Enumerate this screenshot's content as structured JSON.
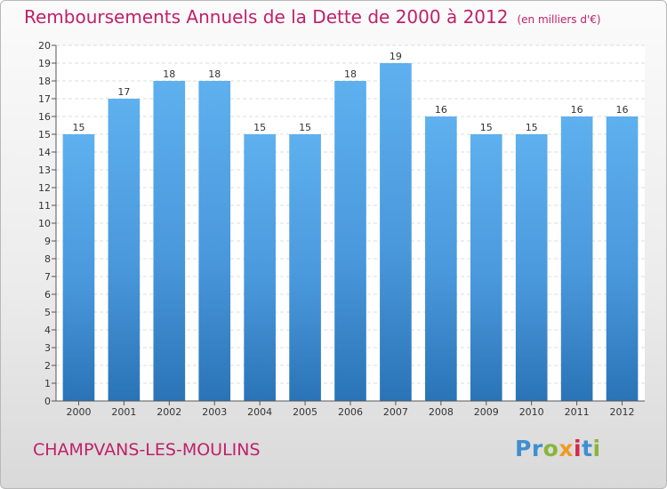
{
  "header": {
    "title": "Remboursements Annuels de la Dette de 2000 à 2012",
    "unit": "(en milliers d'€)"
  },
  "footer": {
    "commune": "CHAMPVANS-LES-MOULINS",
    "logo_text": "Proxiti"
  },
  "colors": {
    "title": "#c0206a",
    "bar_light": "#5aacea",
    "bar_dark": "#2a78ba"
  },
  "chart_data": {
    "type": "bar",
    "title": "Remboursements Annuels de la Dette de 2000 à 2012",
    "subtitle": "(en milliers d'€)",
    "xlabel": "",
    "ylabel": "",
    "categories": [
      "2000",
      "2001",
      "2002",
      "2003",
      "2004",
      "2005",
      "2006",
      "2007",
      "2008",
      "2009",
      "2010",
      "2011",
      "2012"
    ],
    "values": [
      15,
      17,
      18,
      18,
      15,
      15,
      18,
      19,
      16,
      15,
      15,
      16,
      16
    ],
    "ylim": [
      0,
      20
    ],
    "yticks": [
      0,
      1,
      2,
      3,
      4,
      5,
      6,
      7,
      8,
      9,
      10,
      11,
      12,
      13,
      14,
      15,
      16,
      17,
      18,
      19,
      20
    ],
    "grid": true,
    "data_labels": true
  }
}
